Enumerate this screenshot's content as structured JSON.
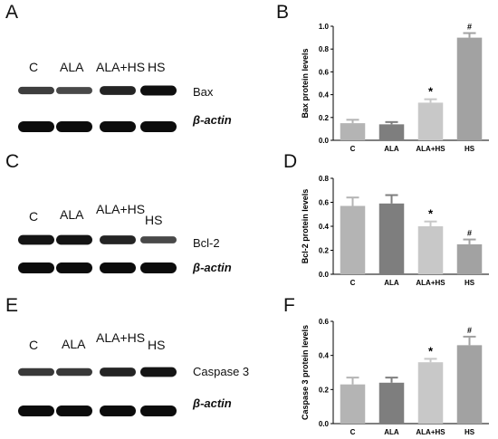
{
  "panels": {
    "A": "A",
    "B": "B",
    "C": "C",
    "D": "D",
    "E": "E",
    "F": "F"
  },
  "blots": [
    {
      "lanes": [
        "C",
        "ALA",
        "ALA+HS",
        "HS"
      ],
      "protein": "Bax",
      "loading": "β-actin",
      "intensity": [
        0.55,
        0.45,
        0.8,
        1.0
      ]
    },
    {
      "lanes": [
        "C",
        "ALA",
        "ALA+HS",
        "HS"
      ],
      "protein": "Bcl-2",
      "loading": "β-actin",
      "intensity": [
        0.95,
        0.95,
        0.8,
        0.45
      ]
    },
    {
      "lanes": [
        "C",
        "ALA",
        "ALA+HS",
        "HS"
      ],
      "protein": "Caspase 3",
      "loading": "β-actin",
      "intensity": [
        0.6,
        0.6,
        0.8,
        0.95
      ]
    }
  ],
  "chart_data": [
    {
      "type": "bar",
      "ylabel": "Bax protein levels",
      "categories": [
        "C",
        "ALA",
        "ALA+HS",
        "HS"
      ],
      "values": [
        0.15,
        0.14,
        0.33,
        0.9
      ],
      "errors": [
        0.03,
        0.02,
        0.03,
        0.04
      ],
      "annotations": [
        "",
        "",
        "*",
        "#"
      ],
      "ylim": [
        0,
        1.0
      ],
      "yticks": [
        0.0,
        0.2,
        0.4,
        0.6,
        0.8,
        1.0
      ],
      "ytick_labels": [
        "0.0",
        "0.2",
        "0.4",
        "0.6",
        "0.8",
        "1.0"
      ],
      "colors": [
        "#b4b4b4",
        "#7e7e7e",
        "#c8c8c8",
        "#a2a2a2"
      ]
    },
    {
      "type": "bar",
      "ylabel": "Bcl-2 protein levels",
      "categories": [
        "C",
        "ALA",
        "ALA+HS",
        "HS"
      ],
      "values": [
        0.57,
        0.59,
        0.4,
        0.25
      ],
      "errors": [
        0.07,
        0.07,
        0.04,
        0.04
      ],
      "annotations": [
        "",
        "",
        "*",
        "#"
      ],
      "ylim": [
        0,
        0.8
      ],
      "yticks": [
        0.0,
        0.2,
        0.4,
        0.6,
        0.8
      ],
      "ytick_labels": [
        "0.0",
        "0.2",
        "0.4",
        "0.6",
        "0.8"
      ],
      "colors": [
        "#b4b4b4",
        "#7e7e7e",
        "#c8c8c8",
        "#a2a2a2"
      ]
    },
    {
      "type": "bar",
      "ylabel": "Caspase 3 protein levels",
      "categories": [
        "C",
        "ALA",
        "ALA+HS",
        "HS"
      ],
      "values": [
        0.23,
        0.24,
        0.36,
        0.46
      ],
      "errors": [
        0.04,
        0.03,
        0.02,
        0.05
      ],
      "annotations": [
        "",
        "",
        "*",
        "#"
      ],
      "ylim": [
        0,
        0.6
      ],
      "yticks": [
        0.0,
        0.2,
        0.4,
        0.6
      ],
      "ytick_labels": [
        "0.0",
        "0.2",
        "0.4",
        "0.6"
      ],
      "colors": [
        "#b4b4b4",
        "#7e7e7e",
        "#c8c8c8",
        "#a2a2a2"
      ]
    }
  ]
}
